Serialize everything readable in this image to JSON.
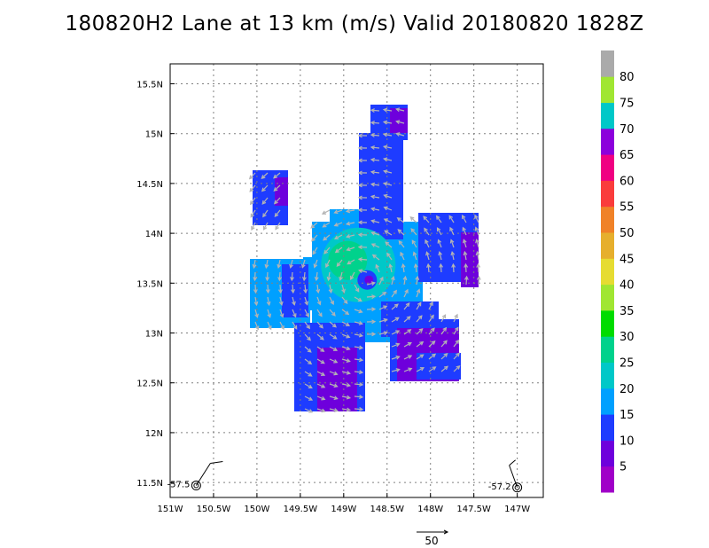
{
  "title": "180820H2 Lane at 13 km (m/s) Valid 20180820 1828Z",
  "chart_data": {
    "type": "heatmap",
    "title": "180820H2 Lane at 13 km (m/s) Valid 20180820 1828Z",
    "x_ticks": [
      {
        "value": -151.0,
        "label": "151W"
      },
      {
        "value": -150.5,
        "label": "150.5W"
      },
      {
        "value": -150.0,
        "label": "150W"
      },
      {
        "value": -149.5,
        "label": "149.5W"
      },
      {
        "value": -149.0,
        "label": "149W"
      },
      {
        "value": -148.5,
        "label": "148.5W"
      },
      {
        "value": -148.0,
        "label": "148W"
      },
      {
        "value": -147.5,
        "label": "147.5W"
      },
      {
        "value": -147.0,
        "label": "147W"
      }
    ],
    "y_ticks": [
      {
        "value": 11.5,
        "label": "11.5N"
      },
      {
        "value": 12.0,
        "label": "12N"
      },
      {
        "value": 12.5,
        "label": "12.5N"
      },
      {
        "value": 13.0,
        "label": "13N"
      },
      {
        "value": 13.5,
        "label": "13.5N"
      },
      {
        "value": 14.0,
        "label": "14N"
      },
      {
        "value": 14.5,
        "label": "14.5N"
      },
      {
        "value": 15.0,
        "label": "15N"
      },
      {
        "value": 15.5,
        "label": "15.5N"
      }
    ],
    "xlim": [
      -151.0,
      -146.7
    ],
    "ylim": [
      11.35,
      15.7
    ],
    "grid": true,
    "center": {
      "lon": -148.75,
      "lat": 13.55
    },
    "colorbar": {
      "labels": [
        "5",
        "10",
        "15",
        "20",
        "25",
        "30",
        "35",
        "40",
        "45",
        "50",
        "55",
        "60",
        "65",
        "70",
        "75",
        "80"
      ],
      "colors": [
        "#a000c8",
        "#6e00dc",
        "#1e3cff",
        "#00a0ff",
        "#00c8c8",
        "#00d28c",
        "#00dc00",
        "#a0e632",
        "#e6dc32",
        "#e6af2d",
        "#f08228",
        "#fa3c3c",
        "#f00082",
        "#8c00dc",
        "#00c8c8",
        "#a0e632",
        "#aaaaaa"
      ]
    },
    "stations": [
      {
        "label": "-57.5",
        "lon": -150.7,
        "lat": 11.47
      },
      {
        "label": "-57.2",
        "lon": -147.0,
        "lat": 11.45
      }
    ],
    "reference_vector": {
      "label": "50"
    }
  }
}
